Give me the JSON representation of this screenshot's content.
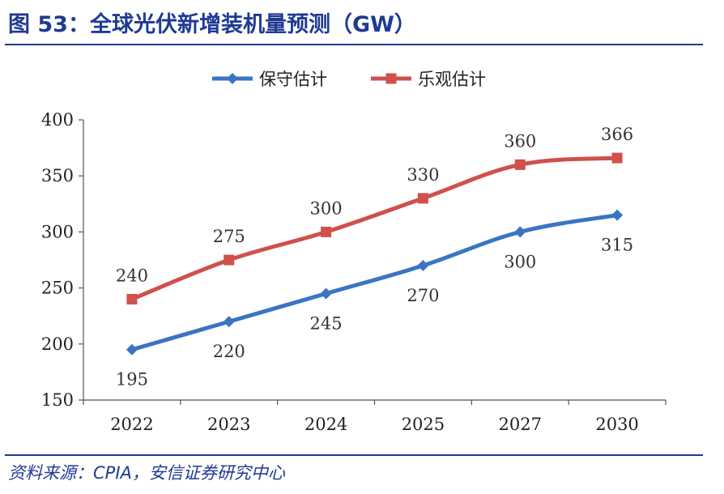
{
  "header": {
    "title": "图 53：全球光伏新增装机量预测（GW）"
  },
  "footer": {
    "source": "资料来源：CPIA，安信证券研究中心"
  },
  "chart_data": {
    "type": "line",
    "categories": [
      "2022",
      "2023",
      "2024",
      "2025",
      "2027",
      "2030"
    ],
    "ylim": [
      150,
      400
    ],
    "yticks": [
      150,
      200,
      250,
      300,
      350,
      400
    ],
    "grid": false,
    "legend_position": "top",
    "series": [
      {
        "name": "保守估计",
        "values": [
          195,
          220,
          245,
          270,
          300,
          315
        ],
        "color": "#3a75c4",
        "marker": "diamond"
      },
      {
        "name": "乐观估计",
        "values": [
          240,
          275,
          300,
          330,
          360,
          366
        ],
        "color": "#d0504c",
        "marker": "square"
      }
    ]
  }
}
